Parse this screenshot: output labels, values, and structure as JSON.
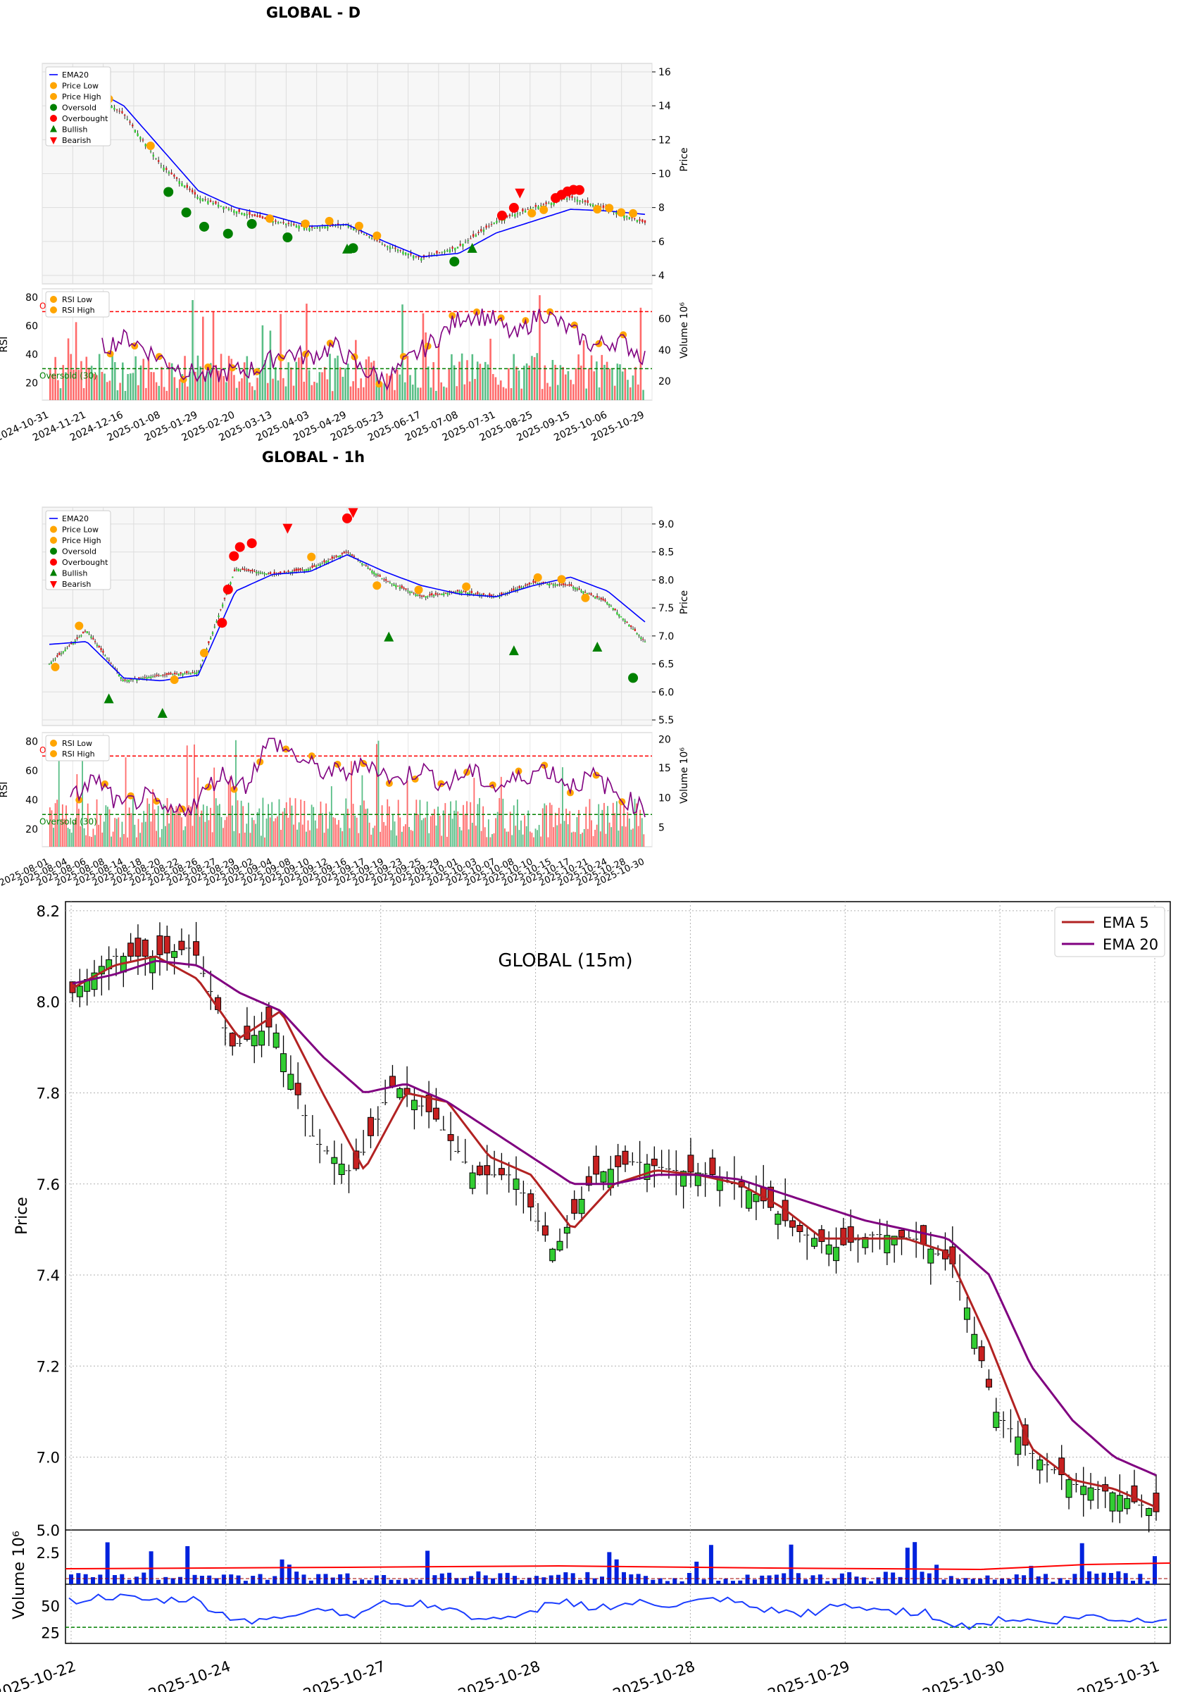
{
  "panel_d": {
    "title": "GLOBAL - D",
    "legend": [
      "EMA20",
      "Price Low",
      "Price High",
      "Oversold",
      "Overbought",
      "Bullish",
      "Bearish"
    ],
    "rsi_legend": [
      "RSI Low",
      "RSI High"
    ],
    "price_axis_label": "Price",
    "rsi_axis_label": "RSI",
    "volume_axis_label": "Volume",
    "volume_unit": "10^6",
    "overbought_label": "Overbought (70)",
    "oversold_label": "Oversold (30)",
    "x_ticks": [
      "2024-10-31",
      "2024-11-21",
      "2024-12-16",
      "2025-01-08",
      "2025-01-29",
      "2025-02-20",
      "2025-03-13",
      "2025-04-03",
      "2025-04-29",
      "2025-05-23",
      "2025-06-17",
      "2025-07-08",
      "2025-07-31",
      "2025-08-25",
      "2025-09-15",
      "2025-10-06",
      "2025-10-29"
    ],
    "price_ticks": [
      "4",
      "6",
      "8",
      "10",
      "12",
      "14",
      "16"
    ],
    "rsi_ticks": [
      "20",
      "40",
      "60",
      "80"
    ],
    "vol_ticks": [
      "20",
      "40",
      "60"
    ]
  },
  "panel_1h": {
    "title": "GLOBAL - 1h",
    "legend": [
      "EMA20",
      "Price Low",
      "Price High",
      "Oversold",
      "Overbought",
      "Bullish",
      "Bearish"
    ],
    "rsi_legend": [
      "RSI Low",
      "RSI High"
    ],
    "price_axis_label": "Price",
    "rsi_axis_label": "RSI",
    "volume_axis_label": "Volume",
    "volume_unit": "10^6",
    "overbought_label": "Overbought (70)",
    "oversold_label": "Oversold (30)",
    "x_ticks": [
      "2025-08-01",
      "2025-08-04",
      "2025-08-06",
      "2025-08-08",
      "2025-08-14",
      "2025-08-18",
      "2025-08-20",
      "2025-08-22",
      "2025-08-26",
      "2025-08-27",
      "2025-08-29",
      "2025-09-02",
      "2025-09-04",
      "2025-09-08",
      "2025-09-10",
      "2025-09-12",
      "2025-09-16",
      "2025-09-17",
      "2025-09-19",
      "2025-09-23",
      "2025-09-25",
      "2025-09-29",
      "2025-10-01",
      "2025-10-03",
      "2025-10-07",
      "2025-10-08",
      "2025-10-10",
      "2025-10-15",
      "2025-10-17",
      "2025-10-21",
      "2025-10-24",
      "2025-10-28",
      "2025-10-30"
    ],
    "price_ticks": [
      "5.5",
      "6.0",
      "6.5",
      "7.0",
      "7.5",
      "8.0",
      "8.5",
      "9.0"
    ],
    "rsi_ticks": [
      "20",
      "40",
      "60",
      "80"
    ],
    "vol_ticks": [
      "5",
      "10",
      "15",
      "20"
    ]
  },
  "panel_15m": {
    "title": "GLOBAL (15m)",
    "legend": [
      "EMA 5",
      "EMA 20"
    ],
    "price_axis_label": "Price",
    "volume_axis_label": "Volume",
    "volume_unit": "10^6",
    "x_ticks": [
      "2025-10-22",
      "2025-10-24",
      "2025-10-27",
      "2025-10-28",
      "2025-10-28",
      "2025-10-29",
      "2025-10-30",
      "2025-10-31"
    ],
    "price_ticks": [
      "7.0",
      "7.2",
      "7.4",
      "7.6",
      "7.8",
      "8.0",
      "8.2"
    ],
    "vol_ticks": [
      "2.5",
      "5.0"
    ],
    "rsi_ticks": [
      "25",
      "50"
    ]
  },
  "colors": {
    "ema20": "#0000ff",
    "ema5_15m": "#b22222",
    "ema20_15m": "#800080",
    "up": "#32cd32",
    "down": "#dc1e1e",
    "vol_up": "#3cb371",
    "vol_down": "#ff5050",
    "marker_orange": "#ffa500",
    "oversold_green": "#008000",
    "overbought_red": "#ff0000",
    "rsi_line": "#800080"
  },
  "chart_data": [
    {
      "type": "line",
      "title": "GLOBAL - D",
      "ylabel": "Price",
      "ylim": [
        3.5,
        16.5
      ],
      "x": [
        "2024-10-31",
        "2024-11-21",
        "2024-12-16",
        "2025-01-08",
        "2025-01-29",
        "2025-02-20",
        "2025-03-13",
        "2025-04-03",
        "2025-04-29",
        "2025-05-23",
        "2025-06-17",
        "2025-07-08",
        "2025-07-31",
        "2025-08-25",
        "2025-09-15",
        "2025-10-06",
        "2025-10-29"
      ],
      "series": [
        {
          "name": "EMA20",
          "values": [
            15.3,
            15.2,
            14.0,
            11.5,
            9.0,
            8.0,
            7.5,
            6.9,
            7.0,
            6.0,
            5.1,
            5.3,
            6.5,
            7.2,
            7.9,
            7.8,
            7.6
          ]
        }
      ],
      "close": [
        15.4,
        15.0,
        13.5,
        10.5,
        8.6,
        7.8,
        7.2,
        6.8,
        7.0,
        5.8,
        5.0,
        5.7,
        7.2,
        8.0,
        8.6,
        7.9,
        7.1
      ]
    },
    {
      "type": "line",
      "title": "GLOBAL - 1h",
      "ylabel": "Price",
      "ylim": [
        5.4,
        9.3
      ],
      "x": [
        "2025-08-01",
        "2025-08-06",
        "2025-08-14",
        "2025-08-20",
        "2025-08-26",
        "2025-08-29",
        "2025-09-04",
        "2025-09-10",
        "2025-09-16",
        "2025-09-19",
        "2025-09-25",
        "2025-10-01",
        "2025-10-07",
        "2025-10-10",
        "2025-10-17",
        "2025-10-24",
        "2025-10-30"
      ],
      "series": [
        {
          "name": "EMA20",
          "values": [
            6.85,
            6.9,
            6.25,
            6.2,
            6.3,
            7.8,
            8.1,
            8.15,
            8.45,
            8.15,
            7.9,
            7.75,
            7.7,
            7.9,
            8.05,
            7.8,
            7.25
          ]
        }
      ],
      "close": [
        6.5,
        7.1,
        6.2,
        6.3,
        6.35,
        8.2,
        8.1,
        8.2,
        8.5,
        8.0,
        7.7,
        7.8,
        7.7,
        7.95,
        7.9,
        7.6,
        6.9
      ]
    },
    {
      "type": "line",
      "title": "GLOBAL (15m)",
      "ylabel": "Price",
      "ylim": [
        6.84,
        8.22
      ],
      "x": [
        "2025-10-22",
        "2025-10-24",
        "2025-10-27",
        "2025-10-28",
        "2025-10-28",
        "2025-10-29",
        "2025-10-30",
        "2025-10-31"
      ],
      "series": [
        {
          "name": "EMA 5",
          "values": [
            8.03,
            7.92,
            7.78,
            7.5,
            7.63,
            7.5,
            7.3,
            6.9
          ]
        },
        {
          "name": "EMA 20",
          "values": [
            8.04,
            8.0,
            7.82,
            7.6,
            7.62,
            7.53,
            7.45,
            7.0
          ]
        }
      ],
      "close": [
        8.03,
        7.9,
        7.75,
        7.45,
        7.63,
        7.49,
        7.2,
        6.9
      ]
    }
  ]
}
